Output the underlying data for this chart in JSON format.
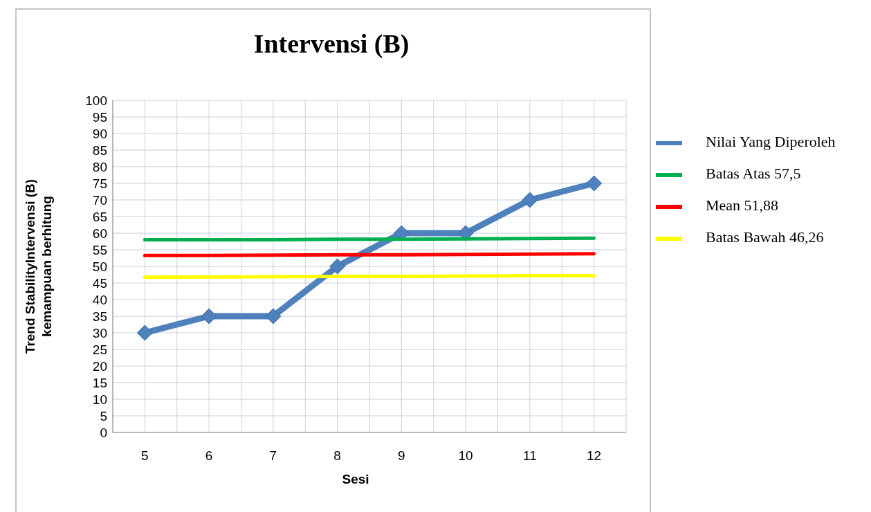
{
  "chart_data": {
    "type": "line",
    "title": "Intervensi (B)",
    "xlabel": "Sesi",
    "ylabel": "Trend StabilityIntervensi (B) kemampuan berhitung",
    "categories": [
      "5",
      "6",
      "7",
      "8",
      "9",
      "10",
      "11",
      "12"
    ],
    "series": [
      {
        "name": "Nilai Yang Diperoleh",
        "color": "#4f81bd",
        "values": [
          30,
          35,
          35,
          50,
          60,
          60,
          70,
          75
        ],
        "marker": "diamond"
      },
      {
        "name": "Batas Atas 57,5",
        "color": "#00b050",
        "values": [
          58,
          58,
          58,
          58.2,
          58.2,
          58.3,
          58.4,
          58.5
        ],
        "marker": "none"
      },
      {
        "name": "Mean 51,88",
        "color": "#ff0000",
        "values": [
          53.3,
          53.3,
          53.4,
          53.5,
          53.5,
          53.6,
          53.7,
          53.8
        ],
        "marker": "none"
      },
      {
        "name": "Batas Bawah 46,26",
        "color": "#ffff00",
        "values": [
          46.7,
          46.8,
          46.9,
          47,
          47,
          47.1,
          47.2,
          47.2
        ],
        "marker": "none"
      }
    ],
    "ylim": [
      0,
      100
    ],
    "yticks": [
      0,
      5,
      10,
      15,
      20,
      25,
      30,
      35,
      40,
      45,
      50,
      55,
      60,
      65,
      70,
      75,
      80,
      85,
      90,
      95,
      100
    ],
    "grid": true,
    "legend": "right"
  }
}
